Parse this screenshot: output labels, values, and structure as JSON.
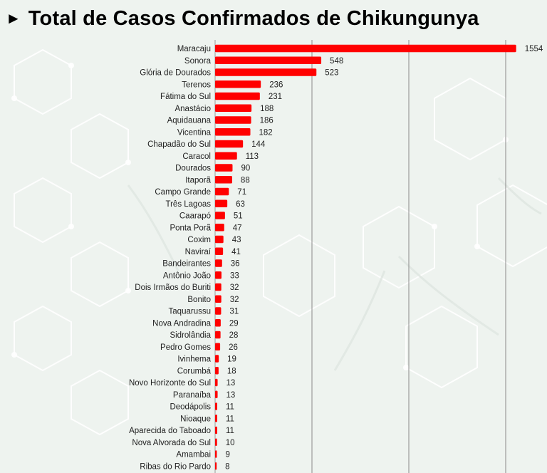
{
  "header": {
    "arrow_icon": "play-triangle-icon",
    "title": "Total de Casos Confirmados de Chikungunya"
  },
  "colors": {
    "bar": "#ff0000",
    "background": "#eef3ef",
    "grid": "#8a8a8a"
  },
  "chart_data": {
    "type": "bar",
    "orientation": "horizontal",
    "title": "Total de Casos Confirmados de Chikungunya",
    "xlim": [
      0,
      1750
    ],
    "grid": true,
    "legend": "none",
    "categories": [
      "Maracaju",
      "Sonora",
      "Glória de Dourados",
      "Terenos",
      "Fátima do Sul",
      "Anastácio",
      "Aquidauana",
      "Vicentina",
      "Chapadão do Sul",
      "Caracol",
      "Dourados",
      "Itaporã",
      "Campo Grande",
      "Três Lagoas",
      "Caarapó",
      "Ponta Porã",
      "Coxim",
      "Naviraí",
      "Bandeirantes",
      "Antônio João",
      "Dois Irmãos do Buriti",
      "Bonito",
      "Taquarussu",
      "Nova Andradina",
      "Sidrolândia",
      "Pedro Gomes",
      "Ivinhema",
      "Corumbá",
      "Novo Horizonte do Sul",
      "Paranaíba",
      "Deodápolis",
      "Nioaque",
      "Aparecida do Taboado",
      "Nova Alvorada do Sul",
      "Amambai",
      "Ribas do Rio Pardo"
    ],
    "values": [
      1554,
      548,
      523,
      236,
      231,
      188,
      186,
      182,
      144,
      113,
      90,
      88,
      71,
      63,
      51,
      47,
      43,
      41,
      36,
      33,
      32,
      32,
      31,
      29,
      28,
      26,
      19,
      18,
      13,
      13,
      11,
      11,
      11,
      10,
      9,
      8
    ]
  }
}
